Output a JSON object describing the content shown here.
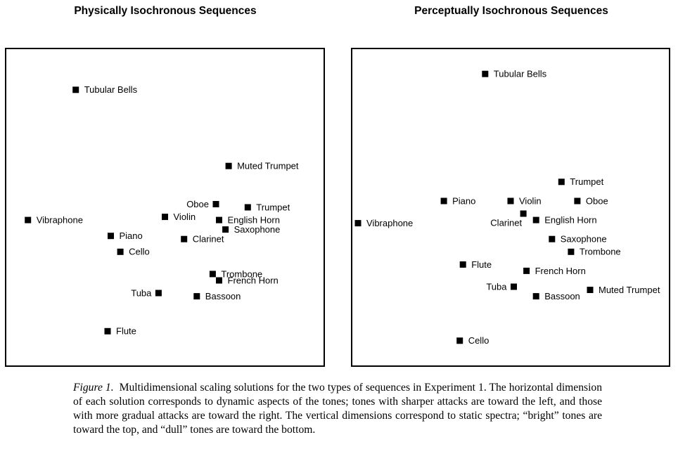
{
  "chart_data": [
    {
      "type": "scatter",
      "title": "Physically Isochronous Sequences",
      "xlabel": "",
      "ylabel": "",
      "axes_ticks": "none",
      "grid": false,
      "x_meaning": "dynamic aspects (sharper attacks left, gradual attacks right)",
      "y_meaning": "static spectra (bright top, dull bottom)",
      "xlim": [
        0,
        100
      ],
      "ylim": [
        0,
        100
      ],
      "points": [
        {
          "label": "Tubular Bells",
          "x": 22,
          "y": 87,
          "label_side": "right"
        },
        {
          "label": "Muted Trumpet",
          "x": 70,
          "y": 63,
          "label_side": "right"
        },
        {
          "label": "Oboe",
          "x": 66,
          "y": 51,
          "label_side": "left"
        },
        {
          "label": "Trumpet",
          "x": 76,
          "y": 50,
          "label_side": "right"
        },
        {
          "label": "Violin",
          "x": 50,
          "y": 47,
          "label_side": "right"
        },
        {
          "label": "English Horn",
          "x": 67,
          "y": 46,
          "label_side": "right"
        },
        {
          "label": "Vibraphone",
          "x": 7,
          "y": 46,
          "label_side": "right"
        },
        {
          "label": "Saxophone",
          "x": 69,
          "y": 43,
          "label_side": "right"
        },
        {
          "label": "Piano",
          "x": 33,
          "y": 41,
          "label_side": "right"
        },
        {
          "label": "Clarinet",
          "x": 56,
          "y": 40,
          "label_side": "right"
        },
        {
          "label": "Cello",
          "x": 36,
          "y": 36,
          "label_side": "right"
        },
        {
          "label": "Trombone",
          "x": 65,
          "y": 29,
          "label_side": "right"
        },
        {
          "label": "French Horn",
          "x": 67,
          "y": 27,
          "label_side": "right"
        },
        {
          "label": "Tuba",
          "x": 48,
          "y": 23,
          "label_side": "left"
        },
        {
          "label": "Bassoon",
          "x": 60,
          "y": 22,
          "label_side": "right"
        },
        {
          "label": "Flute",
          "x": 32,
          "y": 11,
          "label_side": "right"
        }
      ]
    },
    {
      "type": "scatter",
      "title": "Perceptually Isochronous Sequences",
      "xlabel": "",
      "ylabel": "",
      "axes_ticks": "none",
      "grid": false,
      "x_meaning": "dynamic aspects (sharper attacks left, gradual attacks right)",
      "y_meaning": "static spectra (bright top, dull bottom)",
      "xlim": [
        0,
        100
      ],
      "ylim": [
        0,
        100
      ],
      "points": [
        {
          "label": "Tubular Bells",
          "x": 42,
          "y": 92,
          "label_side": "right"
        },
        {
          "label": "Trumpet",
          "x": 66,
          "y": 58,
          "label_side": "right"
        },
        {
          "label": "Piano",
          "x": 29,
          "y": 52,
          "label_side": "right"
        },
        {
          "label": "Violin",
          "x": 50,
          "y": 52,
          "label_side": "right"
        },
        {
          "label": "Oboe",
          "x": 71,
          "y": 52,
          "label_side": "right"
        },
        {
          "label": "Clarinet",
          "x": 54,
          "y": 48,
          "label_side": "left-below"
        },
        {
          "label": "English Horn",
          "x": 58,
          "y": 46,
          "label_side": "right"
        },
        {
          "label": "Vibraphone",
          "x": 2,
          "y": 45,
          "label_side": "right"
        },
        {
          "label": "Saxophone",
          "x": 63,
          "y": 40,
          "label_side": "right"
        },
        {
          "label": "Trombone",
          "x": 69,
          "y": 36,
          "label_side": "right"
        },
        {
          "label": "Flute",
          "x": 35,
          "y": 32,
          "label_side": "right"
        },
        {
          "label": "French Horn",
          "x": 55,
          "y": 30,
          "label_side": "right"
        },
        {
          "label": "Tuba",
          "x": 51,
          "y": 25,
          "label_side": "left"
        },
        {
          "label": "Muted Trumpet",
          "x": 75,
          "y": 24,
          "label_side": "right"
        },
        {
          "label": "Bassoon",
          "x": 58,
          "y": 22,
          "label_side": "right"
        },
        {
          "label": "Cello",
          "x": 34,
          "y": 8,
          "label_side": "right"
        }
      ]
    }
  ],
  "caption": {
    "label": "Figure 1.",
    "text": "Multidimensional scaling solutions for the two types of sequences in Experiment 1. The horizontal dimension of each solution corresponds to dynamic aspects of the tones; tones with sharper attacks are toward the left, and those with more gradual attacks are toward the right. The vertical dimensions correspond to static spectra; “bright” tones are toward the top, and “dull” tones are toward the bottom."
  },
  "colors": {
    "marker": "#000000",
    "text": "#000000",
    "frame": "#000000",
    "background": "#ffffff"
  }
}
